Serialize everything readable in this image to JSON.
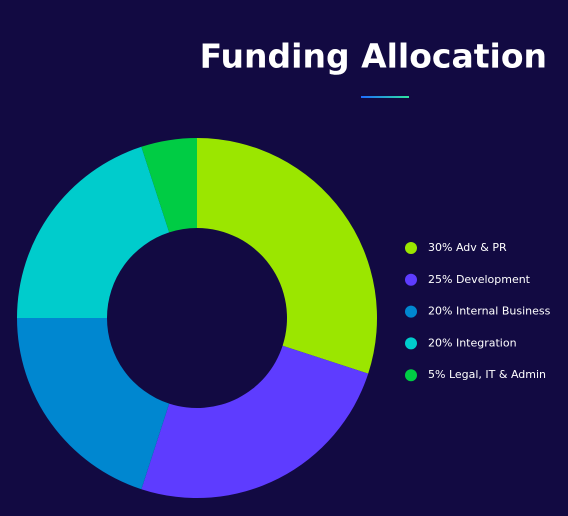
{
  "chart_data": {
    "type": "donut",
    "title": "Funding Allocation",
    "categories": [
      "30% Adv & PR",
      "25% Development",
      "20% Internal Business",
      "20% Integration",
      "5% Legal, IT & Admin"
    ],
    "values": [
      30,
      25,
      20,
      20,
      5
    ],
    "colors": [
      "#9be600",
      "#5e3cff",
      "#0087d0",
      "#00cccc",
      "#00cc44"
    ],
    "legend": "right"
  }
}
